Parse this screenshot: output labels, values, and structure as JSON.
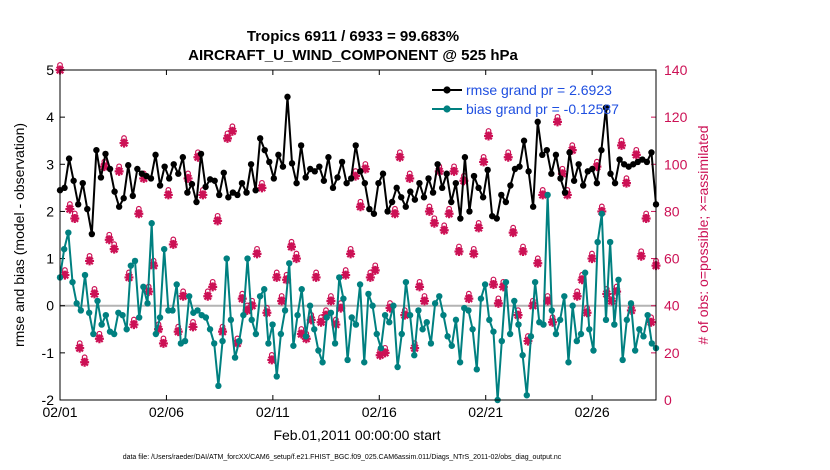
{
  "chart_data": {
    "type": "line",
    "title": "Tropics 6911 / 6933 = 99.683%",
    "subtitle": "AIRCRAFT_U_WIND_COMPONENT @ 525 hPa",
    "xlabel": "Feb.01,2011 00:00:00 start",
    "ylabel": "rmse and bias (model - observation)",
    "y2label": "# of obs: o=possible; ×=assimilated",
    "footer": "data file: /Users/raeder/DAI/ATM_forcXX/CAM6_setup/f.e21.FHIST_BGC.f09_025.CAM6assim.011/Diags_NTrS_2011-02/obs_diag_output.nc",
    "x_tick_labels": [
      "02/01",
      "02/06",
      "02/11",
      "02/16",
      "02/21",
      "02/26"
    ],
    "x_tick_days": [
      0,
      5,
      10,
      15,
      20,
      25
    ],
    "xlim_days": [
      0,
      28
    ],
    "ylim": [
      -2,
      5
    ],
    "y_ticks": [
      -2,
      -1,
      0,
      1,
      2,
      3,
      4,
      5
    ],
    "y2lim": [
      0,
      140
    ],
    "y2_ticks": [
      0,
      20,
      40,
      60,
      80,
      100,
      120,
      140
    ],
    "zero_line": 0,
    "colors": {
      "rmse": "#000000",
      "bias": "#008080",
      "obs": "#cc1155",
      "legend_text": "#1f4fe0",
      "zero_line": "#b4b4b4"
    },
    "legend": [
      {
        "series": "rmse",
        "label": "rmse grand pr = 2.6923"
      },
      {
        "series": "bias",
        "label": "bias grand pr = -0.12587"
      }
    ],
    "time_step_days": 0.25,
    "series": [
      {
        "name": "rmse",
        "values": [
          2.45,
          2.5,
          3.12,
          2.65,
          2.15,
          2.6,
          2.05,
          1.52,
          3.3,
          2.72,
          3.22,
          2.9,
          2.42,
          2.1,
          2.28,
          2.98,
          2.33,
          2.9,
          2.8,
          2.75,
          2.7,
          3.2,
          2.55,
          2.95,
          2.7,
          3.0,
          2.8,
          3.15,
          2.4,
          2.58,
          2.2,
          3.22,
          2.52,
          2.68,
          2.65,
          2.35,
          2.82,
          2.3,
          2.4,
          2.35,
          2.6,
          2.4,
          3.0,
          2.45,
          3.55,
          3.3,
          3.05,
          2.7,
          3.2,
          2.95,
          4.43,
          3.02,
          2.6,
          3.4,
          2.72,
          2.9,
          2.85,
          2.95,
          2.65,
          3.15,
          2.5,
          2.72,
          3.05,
          2.6,
          2.7,
          3.4,
          2.85,
          2.6,
          2.05,
          1.95,
          2.6,
          2.8,
          2.0,
          2.2,
          2.5,
          2.3,
          2.1,
          2.42,
          2.25,
          2.6,
          2.3,
          2.7,
          2.4,
          3.0,
          2.5,
          2.8,
          2.2,
          2.6,
          1.85,
          3.15,
          2.0,
          2.75,
          2.5,
          2.3,
          2.88,
          1.9,
          1.85,
          2.35,
          2.2,
          2.55,
          2.9,
          2.95,
          3.5,
          2.85,
          2.1,
          3.9,
          3.2,
          3.3,
          2.8,
          3.2,
          2.7,
          2.4,
          3.25,
          2.65,
          3.0,
          2.55,
          2.85,
          2.9,
          2.6,
          3.3,
          4.2,
          2.8,
          2.6,
          3.1,
          3.0,
          2.95,
          3.0,
          3.05,
          3.1,
          3.05,
          3.25,
          2.15
        ]
      },
      {
        "name": "bias",
        "values": [
          0.6,
          1.2,
          1.55,
          0.5,
          0.05,
          -0.1,
          0.65,
          -0.15,
          -0.6,
          0.1,
          -0.4,
          -0.2,
          -0.55,
          -0.6,
          -0.15,
          -0.2,
          -0.5,
          0.85,
          0.95,
          -0.25,
          0.4,
          0.05,
          1.75,
          -0.6,
          -0.25,
          1.2,
          -0.1,
          -0.1,
          0.45,
          -0.8,
          -0.75,
          0.2,
          -0.15,
          -0.1,
          -0.2,
          -0.25,
          -0.5,
          -0.8,
          -1.7,
          -0.75,
          1.0,
          -0.3,
          -1.1,
          -0.75,
          -0.2,
          1.0,
          -0.3,
          -0.6,
          0.2,
          0.35,
          -0.8,
          -0.4,
          -1.5,
          -0.6,
          -0.1,
          0.9,
          -0.85,
          -0.2,
          0.35,
          -0.65,
          0.0,
          -0.5,
          -0.95,
          -1.2,
          -0.25,
          -0.15,
          -0.8,
          0.6,
          0.15,
          -1.15,
          -0.25,
          -0.4,
          0.45,
          -1.2,
          0.25,
          0.0,
          -0.6,
          -0.9,
          -0.2,
          -0.35,
          0.0,
          -1.3,
          -0.6,
          0.5,
          -0.2,
          -1.05,
          -0.1,
          -0.5,
          -0.35,
          -0.8,
          0.05,
          0.2,
          -0.2,
          -0.65,
          -0.85,
          -0.3,
          -1.2,
          -0.05,
          -0.1,
          -0.5,
          -1.35,
          0.15,
          0.45,
          -0.3,
          -0.55,
          -2.0,
          -0.75,
          0.5,
          -0.6,
          0.1,
          -0.4,
          -1.05,
          -1.9,
          -0.65,
          0.5,
          -0.35,
          -0.4,
          2.35,
          -0.1,
          -0.6,
          -0.3,
          0.2,
          -1.2,
          0.0,
          -0.75,
          -0.6,
          0.7,
          -0.5,
          -0.95,
          1.35,
          1.95,
          -0.3,
          1.35,
          -0.4,
          0.55,
          -1.15,
          -0.3,
          0.05,
          -0.95,
          -0.5,
          -0.65,
          -0.2,
          -0.8,
          -0.9
        ]
      },
      {
        "name": "obs_possible",
        "axis": "right",
        "marker": "o",
        "values": [
          140,
          53,
          81,
          77,
          22,
          16,
          59,
          45,
          26,
          99,
          68,
          64,
          97,
          109,
          52,
          32,
          79,
          94,
          46,
          57,
          30,
          24,
          87,
          66,
          29,
          44,
          94,
          31,
          103,
          87,
          44,
          48,
          76,
          29,
          111,
          114,
          24,
          43,
          38,
          40,
          62,
          90,
          37,
          17,
          52,
          42,
          51,
          65,
          60,
          28,
          26,
          34,
          52,
          33,
          36,
          42,
          32,
          39,
          53,
          62,
          95,
          82,
          98,
          52,
          55,
          19,
          20,
          39,
          79,
          103,
          36,
          94,
          22,
          48,
          42,
          80,
          75,
          97,
          72,
          79,
          97,
          63,
          93,
          43,
          62,
          73,
          101,
          112,
          49,
          41,
          48,
          103,
          71,
          36,
          63,
          25,
          40,
          58,
          87,
          42,
          33,
          118,
          96,
          87,
          106,
          44,
          51,
          37,
          60,
          99,
          80,
          45,
          42,
          46,
          108,
          92,
          38,
          104,
          61,
          77,
          33,
          57
        ]
      },
      {
        "name": "obs_assimilated",
        "axis": "right",
        "marker": "x",
        "values": [
          140,
          53,
          81,
          77,
          22,
          16,
          59,
          45,
          26,
          99,
          68,
          64,
          97,
          109,
          52,
          32,
          79,
          94,
          46,
          57,
          30,
          24,
          87,
          66,
          29,
          44,
          94,
          31,
          103,
          87,
          44,
          48,
          76,
          29,
          111,
          114,
          24,
          43,
          38,
          40,
          62,
          90,
          37,
          17,
          52,
          42,
          51,
          65,
          60,
          28,
          26,
          34,
          52,
          33,
          36,
          42,
          32,
          39,
          53,
          62,
          95,
          82,
          98,
          52,
          55,
          19,
          20,
          39,
          79,
          103,
          36,
          94,
          22,
          48,
          42,
          80,
          75,
          97,
          72,
          79,
          97,
          63,
          93,
          43,
          62,
          73,
          101,
          112,
          49,
          41,
          48,
          103,
          71,
          36,
          63,
          25,
          40,
          58,
          87,
          42,
          33,
          118,
          96,
          87,
          106,
          44,
          51,
          37,
          60,
          99,
          80,
          45,
          42,
          46,
          108,
          92,
          38,
          104,
          61,
          77,
          33,
          57
        ]
      }
    ]
  }
}
